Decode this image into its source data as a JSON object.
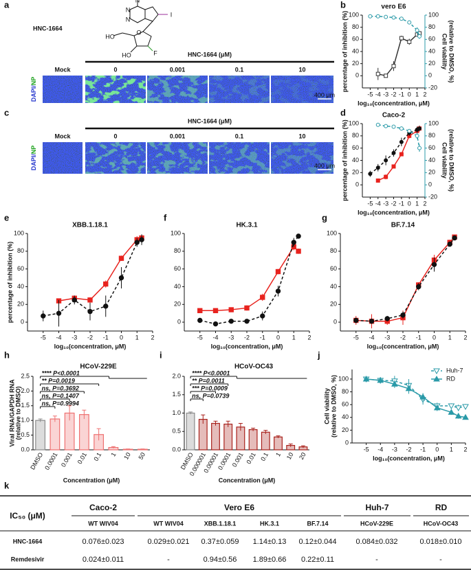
{
  "panels": {
    "a": {
      "label": "a",
      "compound": "HNC-1664",
      "atoms": [
        "N",
        "N",
        "N",
        "I",
        "HO",
        "O",
        "HO",
        "F"
      ],
      "header": "HNC-1664 (μM)",
      "columns": [
        "Mock",
        "0",
        "0.001",
        "0.1",
        "10"
      ],
      "stain": [
        "DAPI/",
        "NP"
      ],
      "scale": "400 μm"
    },
    "c": {
      "label": "c",
      "header": "HNC-1664 (μM)",
      "columns": [
        "Mock",
        "0",
        "0.001",
        "0.1",
        "10"
      ],
      "stain": [
        "DAPI/",
        "NP"
      ],
      "scale": "400 μm"
    }
  },
  "panel_labels": [
    "b",
    "d",
    "e",
    "f",
    "g",
    "h",
    "i",
    "j"
  ],
  "chart_data": [
    {
      "type": "line",
      "title": "vero E6",
      "xlabel": "log₁₀(concentration, μM)",
      "ylabel": "percentage of inhibition (%)",
      "y2label": [
        "Cell viability",
        "(relative to DMSO, %)"
      ],
      "xlim": [
        -6,
        2
      ],
      "xticks": [
        -5,
        -4,
        -3,
        -2,
        -1,
        0,
        1,
        2
      ],
      "ylim": [
        -20,
        100
      ],
      "yticks": [
        0,
        20,
        40,
        60,
        80,
        100
      ],
      "y2lim": [
        -20,
        100
      ],
      "y2ticks": [
        -20,
        0,
        20,
        40,
        60,
        80,
        100
      ],
      "series": [
        {
          "color": "#333333",
          "marker": "square",
          "filled": false,
          "dash": false,
          "x": [
            -4,
            -3,
            -2,
            -1,
            0,
            1,
            1.3
          ],
          "values": [
            3,
            0,
            16,
            62,
            56,
            68,
            70
          ],
          "errors": [
            10,
            2,
            8,
            4,
            5,
            3,
            3
          ]
        },
        {
          "color": "#2a9aa8",
          "marker": "circle",
          "filled": false,
          "dash": true,
          "axis": "y2",
          "x": [
            -5,
            -4,
            -3,
            -2,
            -1,
            0,
            1,
            1.3
          ],
          "values": [
            98,
            98,
            97,
            96,
            94,
            88,
            75,
            65
          ],
          "errors": [
            1,
            1,
            1,
            2,
            2,
            3,
            5,
            4
          ]
        }
      ]
    },
    {
      "type": "line",
      "title": "Caco-2",
      "xlabel": "log₁₀(concentration, μM)",
      "ylabel": "percentage of inhibition (%)",
      "y2label": [
        "Cell viability",
        "(relative to DMSO, %)"
      ],
      "xlim": [
        -6,
        2
      ],
      "xticks": [
        -5,
        -4,
        -3,
        -2,
        -1,
        0,
        1,
        2
      ],
      "ylim": [
        -20,
        100
      ],
      "yticks": [
        0,
        20,
        40,
        60,
        80,
        100
      ],
      "y2lim": [
        -20,
        100
      ],
      "y2ticks": [
        -20,
        0,
        20,
        40,
        60,
        80,
        100
      ],
      "series": [
        {
          "color": "#e8231e",
          "marker": "square",
          "filled": true,
          "dash": false,
          "x": [
            -4,
            -3,
            -2,
            -1,
            0,
            1,
            1.3
          ],
          "values": [
            7,
            13,
            30,
            50,
            80,
            88,
            92
          ],
          "errors": [
            3,
            4,
            3,
            3,
            4,
            4,
            5
          ]
        },
        {
          "color": "#111111",
          "marker": "circle",
          "filled": true,
          "dash": true,
          "x": [
            -5,
            -4,
            -3,
            -2,
            -1,
            0,
            1,
            1.3
          ],
          "values": [
            18,
            28,
            40,
            52,
            70,
            85,
            90,
            92
          ],
          "errors": [
            5,
            6,
            8,
            6,
            7,
            5,
            5,
            4
          ]
        },
        {
          "color": "#2a9aa8",
          "marker": "circle",
          "filled": false,
          "dash": true,
          "axis": "y2",
          "x": [
            -4,
            -3,
            -2,
            -1,
            0,
            1,
            1.3
          ],
          "values": [
            98,
            96,
            95,
            92,
            88,
            80,
            60
          ],
          "errors": [
            1,
            2,
            2,
            2,
            3,
            5,
            6
          ]
        }
      ]
    },
    {
      "type": "line",
      "title": "XBB.1.18.1",
      "xlabel": "log₁₀(concentration, μM)",
      "ylabel": "percentage of inhibition (%)",
      "xlim": [
        -6,
        2
      ],
      "xticks": [
        -5,
        -4,
        -3,
        -2,
        -1,
        0,
        1,
        2
      ],
      "ylim": [
        -10,
        100
      ],
      "yticks": [
        0,
        20,
        40,
        60,
        80,
        100
      ],
      "series": [
        {
          "color": "#e8231e",
          "marker": "square",
          "filled": true,
          "dash": false,
          "x": [
            -4,
            -3,
            -2,
            -1,
            0,
            1,
            1.3
          ],
          "values": [
            24,
            27,
            25,
            43,
            72,
            93,
            95
          ],
          "errors": [
            2,
            3,
            3,
            4,
            3,
            4,
            3
          ]
        },
        {
          "color": "#111111",
          "marker": "circle",
          "filled": true,
          "dash": true,
          "x": [
            -5,
            -4,
            -3,
            -2,
            -1,
            0,
            1,
            1.3
          ],
          "values": [
            7,
            10,
            25,
            12,
            18,
            50,
            90,
            93
          ],
          "errors": [
            6,
            15,
            5,
            10,
            12,
            12,
            5,
            6
          ]
        }
      ]
    },
    {
      "type": "line",
      "title": "HK.3.1",
      "xlabel": "log₁₀(concentration, μM)",
      "xlim": [
        -6,
        2
      ],
      "xticks": [
        -5,
        -4,
        -3,
        -2,
        -1,
        0,
        1,
        2
      ],
      "ylim": [
        -10,
        100
      ],
      "yticks": [
        0,
        20,
        40,
        60,
        80,
        100
      ],
      "series": [
        {
          "color": "#e8231e",
          "marker": "square",
          "filled": true,
          "dash": false,
          "x": [
            -5,
            -4,
            -3,
            -2,
            -1,
            0,
            1,
            1.3
          ],
          "values": [
            13,
            13,
            14,
            16,
            28,
            57,
            85,
            80
          ],
          "errors": [
            2,
            2,
            2,
            3,
            4,
            3,
            4,
            3
          ]
        },
        {
          "color": "#111111",
          "marker": "circle",
          "filled": true,
          "dash": true,
          "x": [
            -5,
            -4,
            -3,
            -2,
            -1,
            0,
            1,
            1.3
          ],
          "values": [
            2,
            -2,
            1,
            1,
            7,
            35,
            90,
            97
          ],
          "errors": [
            1,
            1,
            1,
            2,
            5,
            6,
            5,
            2
          ]
        }
      ]
    },
    {
      "type": "line",
      "title": "BF.7.14",
      "xlabel": "log₁₀(concentration, μM)",
      "xlim": [
        -6,
        2
      ],
      "xticks": [
        -5,
        -4,
        -3,
        -2,
        -1,
        0,
        1,
        2
      ],
      "ylim": [
        -10,
        100
      ],
      "yticks": [
        0,
        20,
        40,
        60,
        80,
        100
      ],
      "series": [
        {
          "color": "#e8231e",
          "marker": "square",
          "filled": true,
          "dash": false,
          "x": [
            -5,
            -4,
            -3,
            -2,
            -1,
            0,
            1,
            1.3
          ],
          "values": [
            2,
            1,
            1,
            5,
            42,
            70,
            90,
            96
          ],
          "errors": [
            5,
            8,
            4,
            8,
            3,
            6,
            3,
            2
          ]
        },
        {
          "color": "#111111",
          "marker": "circle",
          "filled": true,
          "dash": true,
          "x": [
            -5,
            -4,
            -3,
            -2,
            -1,
            0,
            1,
            1.3
          ],
          "values": [
            2,
            1,
            4,
            8,
            40,
            65,
            88,
            95
          ],
          "errors": [
            3,
            3,
            3,
            4,
            4,
            8,
            3,
            2
          ]
        }
      ]
    },
    {
      "type": "bar",
      "title": "HCoV-229E",
      "xlabel": "Concentration (μM)",
      "ylabel": [
        "Viral RNA/GAPDH RNA",
        "(relative to DMSO)"
      ],
      "categories": [
        "DMSO",
        "0.0001",
        "0.001",
        "0.01",
        "0.1",
        "1",
        "10",
        "50"
      ],
      "values": [
        1.0,
        1.05,
        1.25,
        1.2,
        0.52,
        0.08,
        0.02,
        0.02
      ],
      "errors": [
        0.05,
        0.1,
        0.25,
        0.15,
        0.2,
        0.03,
        0.01,
        0.01
      ],
      "color": "#ee7070",
      "control_color": "#8a8a8a",
      "ylim": [
        0,
        2.5
      ],
      "yticks": [
        {
          "value": 0,
          "label": "0.0"
        },
        {
          "value": 0.5,
          "label": "0.5"
        },
        {
          "value": 1,
          "label": "1.0"
        },
        {
          "value": 1.5,
          "label": "1.5"
        },
        {
          "value": 2,
          "label": "2.0"
        },
        {
          "value": 2.5,
          "label": "2.5"
        }
      ],
      "annotations": [
        "**** P<0.0001",
        "** P=0.0019",
        "ns, P=0.3692",
        "ns, P=0.1407",
        "ns, P=0.9994"
      ]
    },
    {
      "type": "bar",
      "title": "HCoV-OC43",
      "xlabel": "Concentration (μM)",
      "categories": [
        "DMSO",
        "0.000001",
        "0.00001",
        "0.0001",
        "0.001",
        "0.01",
        "0.1",
        "1",
        "10",
        "20"
      ],
      "values": [
        1.0,
        0.83,
        0.72,
        0.7,
        0.62,
        0.55,
        0.48,
        0.35,
        0.12,
        0.08
      ],
      "errors": [
        0.03,
        0.12,
        0.06,
        0.08,
        0.1,
        0.04,
        0.05,
        0.03,
        0.04,
        0.03
      ],
      "color": "#a8201a",
      "control_color": "#8a8a8a",
      "ylim": [
        0,
        2.0
      ],
      "yticks": [
        {
          "value": 0,
          "label": "0.0"
        },
        {
          "value": 0.5,
          "label": "0.5"
        },
        {
          "value": 1,
          "label": "1.0"
        },
        {
          "value": 1.5,
          "label": "1.5"
        },
        {
          "value": 2,
          "label": "2.0"
        }
      ],
      "annotations": [
        "**** P<0.0001",
        "** P=0.0011",
        "*** P=0.0009",
        "ns, P=0.0739"
      ]
    },
    {
      "type": "line",
      "xlabel": "log₁₀(concentration, μM)",
      "ylabel": [
        "Cell viability",
        "(relative to DMSO, %)"
      ],
      "xlim": [
        -6,
        2
      ],
      "xticks": [
        -5,
        -4,
        -3,
        -2,
        -1,
        0,
        1,
        2
      ],
      "ylim": [
        0,
        115
      ],
      "yticks": [
        0,
        20,
        40,
        60,
        80,
        100
      ],
      "legend": "upper right",
      "series": [
        {
          "name": "Huh-7",
          "color": "#2a9aa8",
          "marker": "tri-down",
          "filled": false,
          "dash": true,
          "x": [
            -5,
            -4,
            -3,
            -2,
            -1,
            0,
            1,
            1.5,
            2
          ],
          "values": [
            100,
            98,
            97,
            90,
            68,
            58,
            58,
            55,
            57
          ],
          "errors": [
            4,
            5,
            8,
            10,
            8,
            5,
            4,
            5,
            4
          ]
        },
        {
          "name": "RD",
          "color": "#2a9aa8",
          "marker": "tri-up",
          "filled": true,
          "dash": false,
          "x": [
            -5,
            -4,
            -3,
            -2,
            -1,
            0,
            1,
            1.5,
            2
          ],
          "values": [
            100,
            98,
            92,
            85,
            72,
            55,
            48,
            42,
            40
          ],
          "errors": [
            3,
            4,
            6,
            8,
            6,
            5,
            4,
            4,
            3
          ]
        }
      ]
    }
  ],
  "table": {
    "label": "k",
    "corner": "IC₅₀ (μM)",
    "groups": [
      "Caco-2",
      "Vero E6",
      "Huh-7",
      "RD"
    ],
    "columns": [
      "WT WIV04",
      "WT WIV04",
      "XBB.1.18.1",
      "HK.3.1",
      "BF.7.14",
      "HCoV-229E",
      "HCoV-OC43"
    ],
    "rows": [
      {
        "name": "HNC-1664",
        "cells": [
          "0.076±0.023",
          "0.029±0.021",
          "0.37±0.059",
          "1.14±0.13",
          "0.12±0.044",
          "0.084±0.032",
          "0.018±0.010"
        ]
      },
      {
        "name": "Remdesivir",
        "cells": [
          "0.024±0.011",
          "-",
          "0.94±0.56",
          "1.89±0.66",
          "0.22±0.11",
          "-",
          "-"
        ]
      }
    ]
  }
}
